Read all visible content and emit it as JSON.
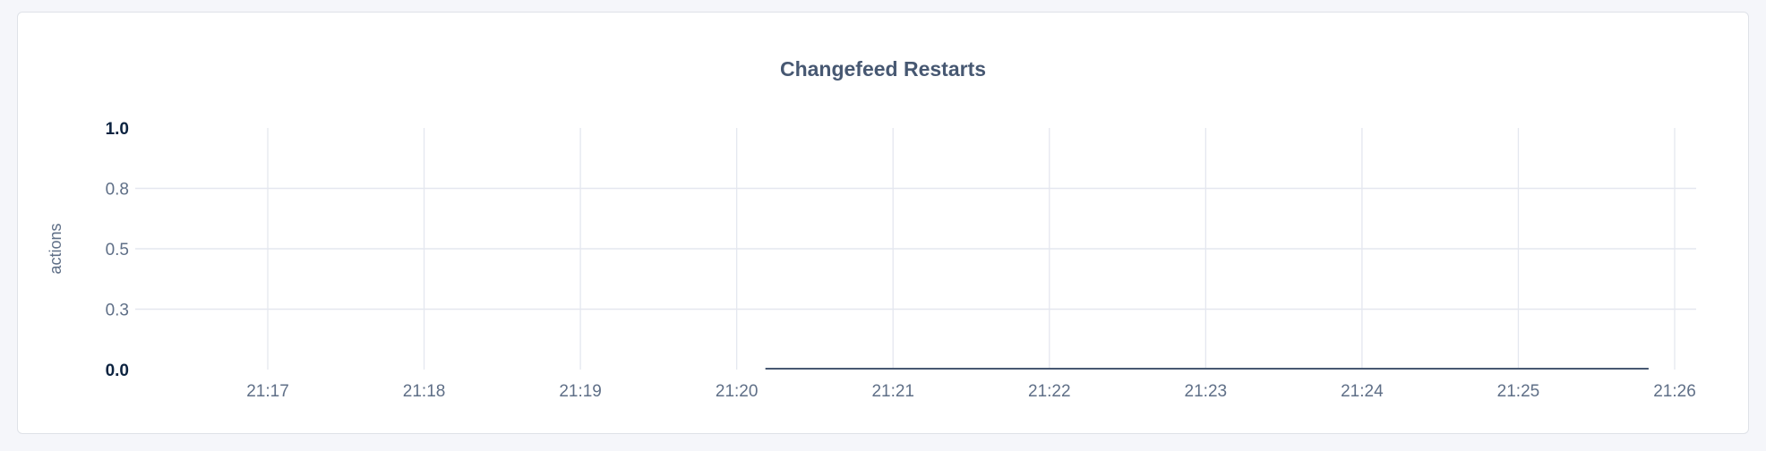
{
  "chart_data": {
    "type": "line",
    "title": "Changefeed Restarts",
    "xlabel": "",
    "ylabel": "actions",
    "x_ticks": [
      "21:17",
      "21:18",
      "21:19",
      "21:20",
      "21:21",
      "21:22",
      "21:23",
      "21:24",
      "21:25",
      "21:26"
    ],
    "y_ticks": [
      {
        "value": 0,
        "label": "0.0",
        "bold": true
      },
      {
        "value": 0.25,
        "label": "0.3",
        "bold": false
      },
      {
        "value": 0.5,
        "label": "0.5",
        "bold": false
      },
      {
        "value": 0.75,
        "label": "0.8",
        "bold": false
      },
      {
        "value": 1,
        "label": "1.0",
        "bold": true
      }
    ],
    "ylim": [
      0,
      1
    ],
    "xlim": [
      "21:16:13",
      "21:26:15"
    ],
    "grid": true,
    "series": [
      {
        "color": "#475872",
        "points": [
          [
            "21:20:11",
            0
          ],
          [
            "21:25:50",
            0
          ]
        ]
      }
    ],
    "colors": {
      "grid": "#e4e7ef",
      "text": "#5f6f87",
      "emphasis": "#0c2340"
    }
  }
}
